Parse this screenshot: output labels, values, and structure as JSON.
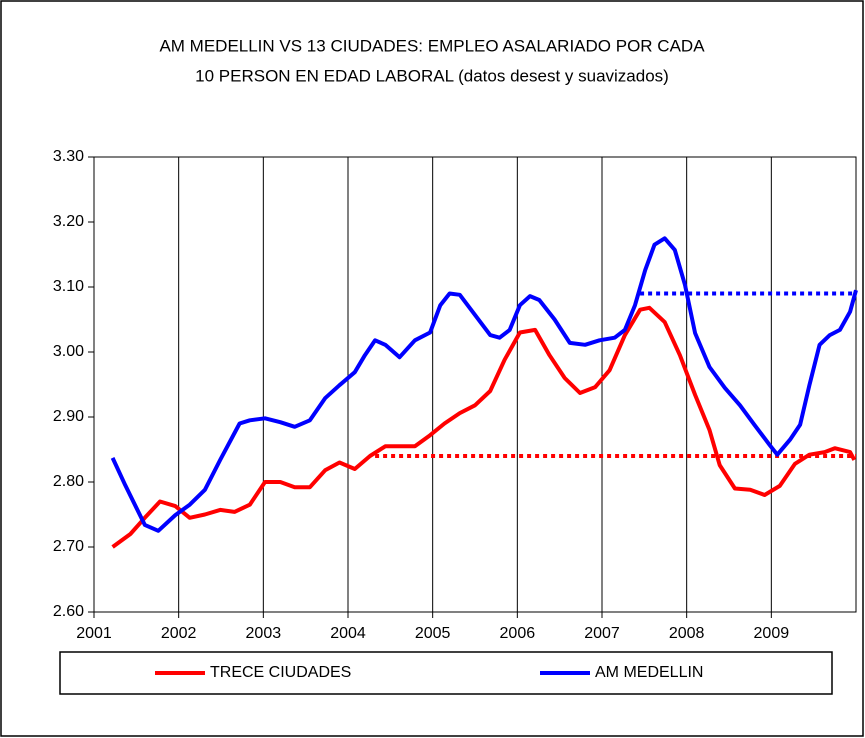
{
  "chart_data": {
    "type": "line",
    "title": [
      "AM MEDELLIN VS 13 CIUDADES: EMPLEO ASALARIADO POR CADA",
      "10 PERSON EN EDAD LABORAL (datos desest y suavizados)"
    ],
    "xlim": [
      2001,
      2010
    ],
    "xticks": [
      2001,
      2002,
      2003,
      2004,
      2005,
      2006,
      2007,
      2008,
      2009
    ],
    "ylim": [
      2.6,
      3.3
    ],
    "yticks": [
      {
        "value": 2.6,
        "label": "2.60"
      },
      {
        "value": 2.7,
        "label": "2.70"
      },
      {
        "value": 2.8,
        "label": "2.80"
      },
      {
        "value": 2.9,
        "label": "2.90"
      },
      {
        "value": 3.0,
        "label": "3.00"
      },
      {
        "value": 3.1,
        "label": "3.10"
      },
      {
        "value": 3.2,
        "label": "3.20"
      },
      {
        "value": 3.3,
        "label": "3.30"
      }
    ],
    "grid": "x",
    "legend": "bottom",
    "series": [
      {
        "name": "TRECE CIUDADES",
        "color": "#ff0000",
        "x": [
          2001.22,
          2001.43,
          2001.6,
          2001.78,
          2001.96,
          2002.13,
          2002.31,
          2002.49,
          2002.66,
          2002.84,
          2003.02,
          2003.2,
          2003.37,
          2003.55,
          2003.73,
          2003.9,
          2004.08,
          2004.26,
          2004.44,
          2004.61,
          2004.79,
          2004.97,
          2005.14,
          2005.32,
          2005.5,
          2005.68,
          2005.85,
          2006.03,
          2006.21,
          2006.38,
          2006.56,
          2006.74,
          2006.92,
          2007.09,
          2007.27,
          2007.45,
          2007.56,
          2007.74,
          2007.92,
          2008.1,
          2008.27,
          2008.39,
          2008.57,
          2008.75,
          2008.92,
          2009.1,
          2009.28,
          2009.45,
          2009.63,
          2009.75,
          2009.93,
          2009.98
        ],
        "values": [
          2.7,
          2.72,
          2.745,
          2.77,
          2.763,
          2.745,
          2.75,
          2.757,
          2.754,
          2.765,
          2.8,
          2.8,
          2.792,
          2.792,
          2.818,
          2.83,
          2.82,
          2.84,
          2.855,
          2.855,
          2.855,
          2.872,
          2.89,
          2.906,
          2.918,
          2.94,
          2.988,
          3.03,
          3.034,
          2.995,
          2.96,
          2.937,
          2.946,
          2.972,
          3.026,
          3.065,
          3.068,
          3.046,
          2.995,
          2.934,
          2.88,
          2.826,
          2.79,
          2.788,
          2.78,
          2.794,
          2.828,
          2.842,
          2.846,
          2.852,
          2.846,
          2.834
        ]
      },
      {
        "name": "AM MEDELLIN",
        "color": "#0000ff",
        "x": [
          2001.22,
          2001.37,
          2001.6,
          2001.76,
          2001.96,
          2002.13,
          2002.31,
          2002.49,
          2002.72,
          2002.84,
          2003.02,
          2003.2,
          2003.37,
          2003.55,
          2003.73,
          2003.9,
          2004.08,
          2004.2,
          2004.32,
          2004.44,
          2004.61,
          2004.79,
          2004.97,
          2005.09,
          2005.2,
          2005.32,
          2005.5,
          2005.68,
          2005.79,
          2005.91,
          2006.03,
          2006.15,
          2006.26,
          2006.44,
          2006.62,
          2006.8,
          2006.97,
          2007.15,
          2007.27,
          2007.39,
          2007.51,
          2007.62,
          2007.74,
          2007.86,
          2007.98,
          2008.1,
          2008.27,
          2008.45,
          2008.63,
          2008.8,
          2008.98,
          2009.07,
          2009.22,
          2009.34,
          2009.45,
          2009.57,
          2009.69,
          2009.81,
          2009.93,
          2010.0
        ],
        "values": [
          2.837,
          2.795,
          2.734,
          2.725,
          2.749,
          2.765,
          2.788,
          2.834,
          2.89,
          2.895,
          2.898,
          2.892,
          2.885,
          2.895,
          2.929,
          2.949,
          2.969,
          2.995,
          3.018,
          3.011,
          2.992,
          3.018,
          3.03,
          3.072,
          3.09,
          3.088,
          3.057,
          3.026,
          3.022,
          3.034,
          3.072,
          3.086,
          3.08,
          3.05,
          3.014,
          3.011,
          3.018,
          3.022,
          3.034,
          3.072,
          3.126,
          3.165,
          3.175,
          3.157,
          3.103,
          3.029,
          2.977,
          2.945,
          2.918,
          2.888,
          2.857,
          2.842,
          2.865,
          2.888,
          2.949,
          3.011,
          3.026,
          3.034,
          3.062,
          3.095
        ]
      }
    ],
    "reference_lines": [
      {
        "value": 2.84,
        "x": [
          2004.32,
          2010
        ],
        "color": "#ff0000"
      },
      {
        "value": 3.09,
        "x": [
          2007.45,
          2010
        ],
        "color": "#0000ff"
      }
    ]
  }
}
